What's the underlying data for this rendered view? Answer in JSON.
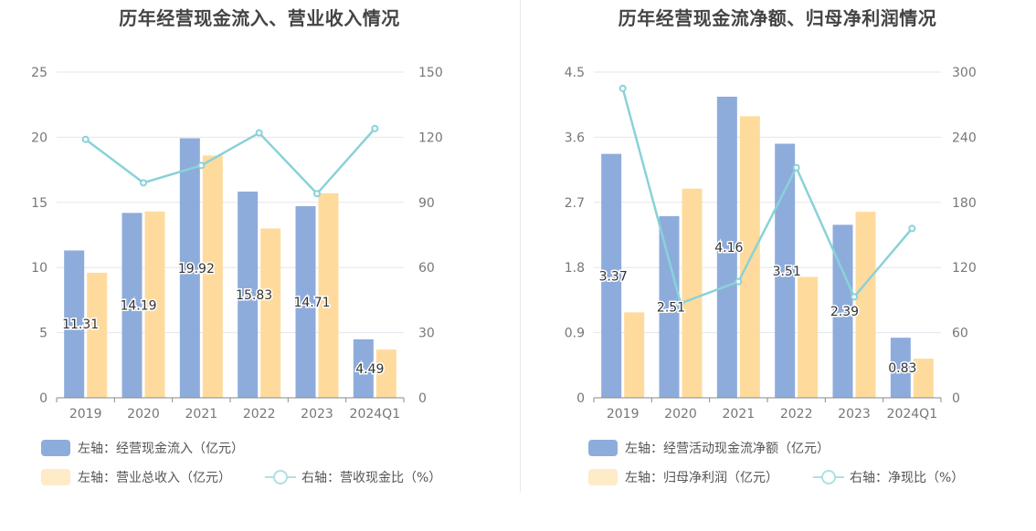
{
  "chart_data": [
    {
      "type": "bar",
      "title": "历年经营现金流入、营业收入情况",
      "categories": [
        "2019",
        "2020",
        "2021",
        "2022",
        "2023",
        "2024Q1"
      ],
      "series": [
        {
          "name": "左轴：经营现金流入（亿元）",
          "type": "bar",
          "axis": "left",
          "color": "#8eacdb",
          "values": [
            11.31,
            14.19,
            19.92,
            15.83,
            14.71,
            4.49
          ],
          "data_labels": true
        },
        {
          "name": "左轴：营业总收入（亿元）",
          "type": "bar",
          "axis": "left",
          "color": "#fedb9d",
          "values": [
            9.6,
            14.3,
            18.6,
            13.0,
            15.7,
            3.7
          ],
          "data_labels": false
        },
        {
          "name": "右轴：营收现金比（%）",
          "type": "line",
          "axis": "right",
          "color": "#89d2d8",
          "values": [
            119,
            99,
            107,
            122,
            94,
            124
          ]
        }
      ],
      "left_axis": {
        "min": 0,
        "max": 25,
        "ticks": [
          "0",
          "5",
          "10",
          "15",
          "20",
          "25"
        ]
      },
      "right_axis": {
        "min": 0,
        "max": 150,
        "ticks": [
          "0",
          "30",
          "60",
          "90",
          "120",
          "150"
        ]
      },
      "legend_position": "bottom-left",
      "grid": true
    },
    {
      "type": "bar",
      "title": "历年经营现金流净额、归母净利润情况",
      "categories": [
        "2019",
        "2020",
        "2021",
        "2022",
        "2023",
        "2024Q1"
      ],
      "series": [
        {
          "name": "左轴：经营活动现金流净额（亿元）",
          "type": "bar",
          "axis": "left",
          "color": "#8eacdb",
          "values": [
            3.37,
            2.51,
            4.16,
            3.51,
            2.39,
            0.83
          ],
          "data_labels": true
        },
        {
          "name": "左轴：归母净利润（亿元）",
          "type": "bar",
          "axis": "left",
          "color": "#fedb9d",
          "values": [
            1.18,
            2.89,
            3.89,
            1.67,
            2.57,
            0.54
          ],
          "data_labels": false
        },
        {
          "name": "右轴：净现比（%）",
          "type": "line",
          "axis": "right",
          "color": "#89d2d8",
          "values": [
            285,
            87,
            107,
            212,
            93,
            156
          ]
        }
      ],
      "left_axis": {
        "min": 0,
        "max": 4.5,
        "ticks": [
          "0",
          "0.9",
          "1.8",
          "2.7",
          "3.6",
          "4.5"
        ]
      },
      "right_axis": {
        "min": 0,
        "max": 300,
        "ticks": [
          "0",
          "60",
          "120",
          "180",
          "240",
          "300"
        ]
      },
      "legend_position": "bottom-left",
      "grid": true
    }
  ]
}
